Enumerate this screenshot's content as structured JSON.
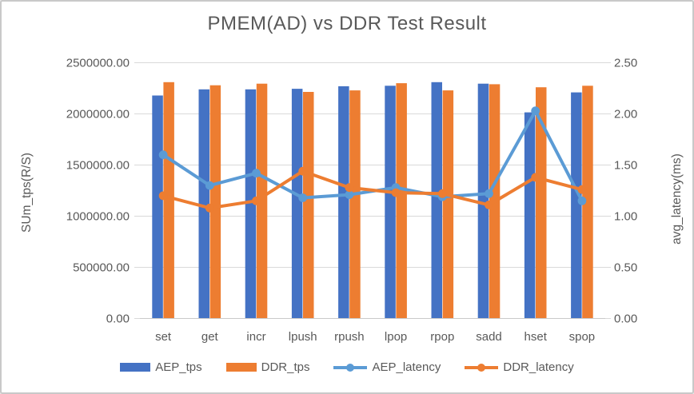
{
  "window": {
    "background": "#ffffff",
    "frame_border_color": "#c9c9c9"
  },
  "chart_data": {
    "type": "bar",
    "subtype": "combo-bar-line-dual-axis",
    "title": "PMEM(AD) vs DDR Test Result",
    "categories": [
      "set",
      "get",
      "incr",
      "lpush",
      "rpush",
      "lpop",
      "rpop",
      "sadd",
      "hset",
      "spop"
    ],
    "series": [
      {
        "name": "AEP_tps",
        "type": "bar",
        "axis": "left",
        "color": "#4472C4",
        "values": [
          2180000,
          2240000,
          2240000,
          2245000,
          2270000,
          2275000,
          2310000,
          2295000,
          2015000,
          2210000
        ]
      },
      {
        "name": "DDR_tps",
        "type": "bar",
        "axis": "left",
        "color": "#ED7D31",
        "values": [
          2310000,
          2280000,
          2295000,
          2215000,
          2230000,
          2300000,
          2230000,
          2290000,
          2260000,
          2275000
        ]
      },
      {
        "name": "AEP_latency",
        "type": "line",
        "axis": "right",
        "color": "#5B9BD5",
        "values": [
          1.6,
          1.3,
          1.42,
          1.18,
          1.21,
          1.28,
          1.19,
          1.22,
          2.03,
          1.15
        ]
      },
      {
        "name": "DDR_latency",
        "type": "line",
        "axis": "right",
        "color": "#ED7D31",
        "values": [
          1.2,
          1.08,
          1.15,
          1.44,
          1.28,
          1.23,
          1.22,
          1.11,
          1.38,
          1.26
        ]
      }
    ],
    "left_axis": {
      "title": "SUm_tps(R/S)",
      "min": 0,
      "max": 2500000,
      "step": 500000,
      "tick_labels": [
        "2500000.00",
        "2000000.00",
        "1500000.00",
        "1000000.00",
        "500000.00",
        "0.00"
      ]
    },
    "right_axis": {
      "title": "avg_latency(ms)",
      "min": 0,
      "max": 2.5,
      "step": 0.5,
      "tick_labels": [
        "2.50",
        "2.00",
        "1.50",
        "1.00",
        "0.50",
        "0.00"
      ]
    },
    "grid": true,
    "legend_position": "bottom",
    "text_color": "#595959",
    "gridline_color": "#D9D9D9"
  }
}
